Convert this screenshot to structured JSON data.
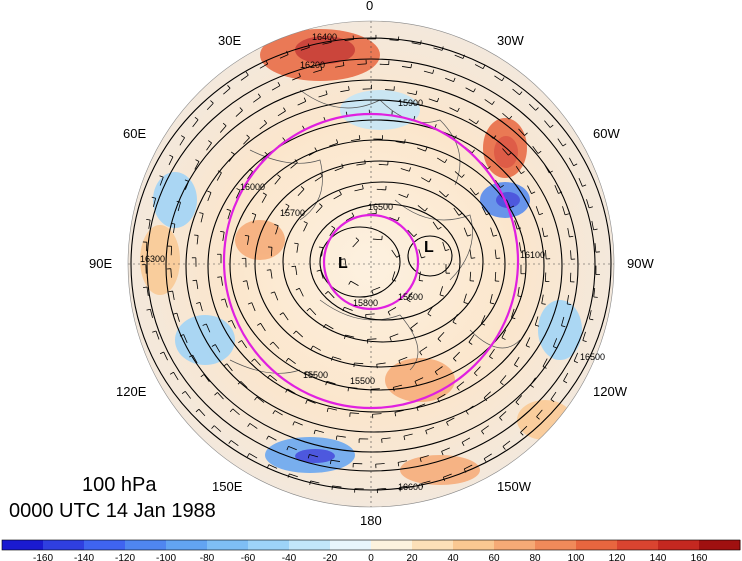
{
  "title": {
    "level": "100 hPa",
    "datetime": "0000 UTC 14 Jan 1988"
  },
  "map": {
    "projection": "north-polar-stereographic",
    "longitude_labels": [
      "0",
      "30W",
      "60W",
      "90W",
      "120W",
      "150W",
      "180",
      "150E",
      "120E",
      "90E",
      "60E",
      "30E"
    ],
    "contour_labels": [
      "15500",
      "15600",
      "15700",
      "15800",
      "15900",
      "16000",
      "16100",
      "16200",
      "16300",
      "16400",
      "16500",
      "16600"
    ],
    "lows": [
      "L",
      "L"
    ],
    "colors": {
      "contour": "#000000",
      "circle": "#e020e0",
      "coast": "#444444"
    }
  },
  "colorbar": {
    "labels": [
      "-160",
      "-140",
      "-120",
      "-100",
      "-80",
      "-60",
      "-40",
      "-20",
      "0",
      "20",
      "40",
      "60",
      "80",
      "100",
      "120",
      "140",
      "160"
    ],
    "colors": [
      "#1a1ad0",
      "#2f3fe0",
      "#3f64f0",
      "#4f86f0",
      "#62a4f2",
      "#7ebef5",
      "#9dd3f8",
      "#c2e6fa",
      "#e8f6fd",
      "#fdf3de",
      "#fde0b8",
      "#fac892",
      "#f6aa76",
      "#f08a5a",
      "#e8663f",
      "#da4430",
      "#c42820",
      "#a01010"
    ]
  }
}
